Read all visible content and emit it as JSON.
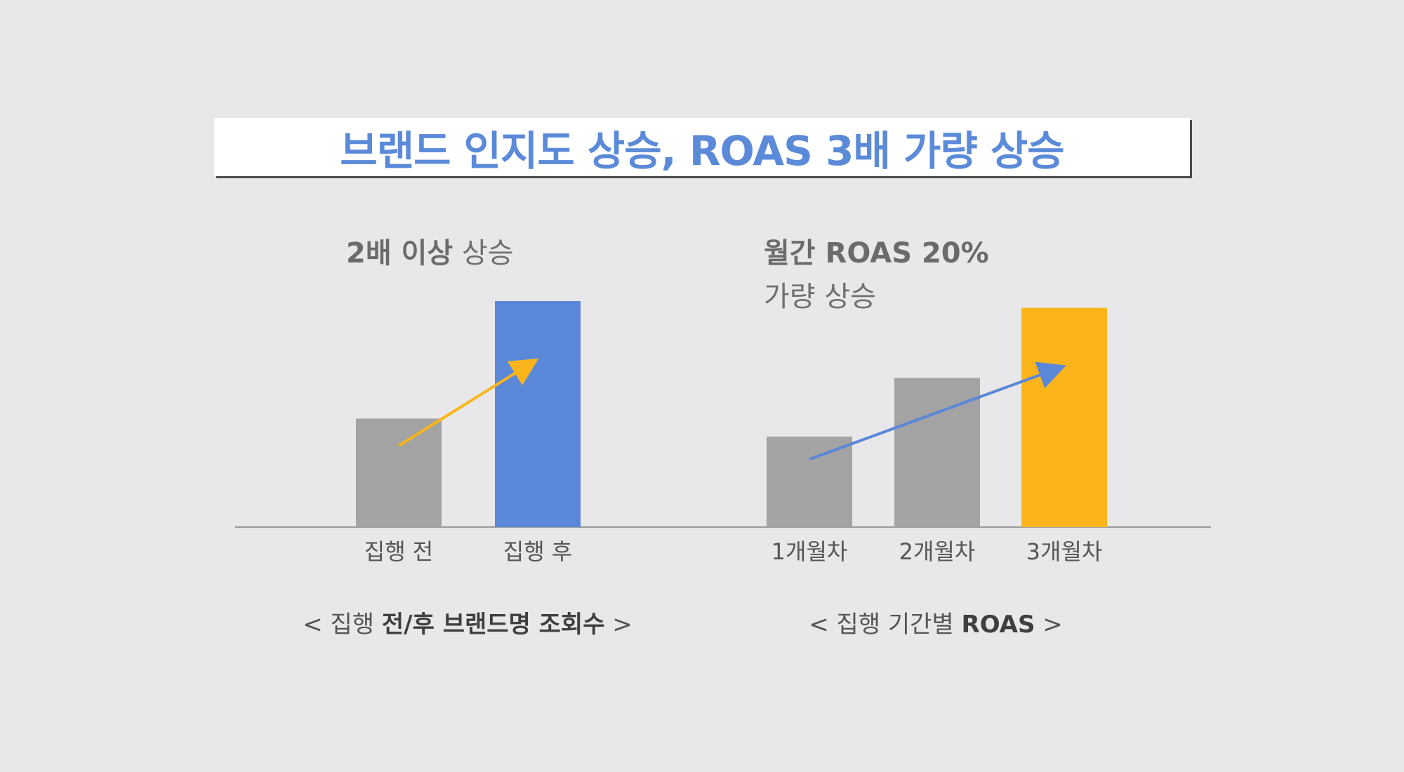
{
  "title": "브랜드 인지도 상승, ROAS 3배 가량 상승",
  "left_panel": {
    "headline_bold": "2배 이상",
    "headline_light": " 상승",
    "caption_prefix": "< 집행 ",
    "caption_bold": "전/후 브랜드명 조회수",
    "caption_suffix": " >"
  },
  "right_panel": {
    "headline_bold": "월간 ROAS 20%",
    "headline_light": "가량 상승",
    "caption_prefix": "< 집행 기간별 ",
    "caption_bold": "ROAS",
    "caption_suffix": " >"
  },
  "colors": {
    "gray_bar": "#a3a3a3",
    "blue": "#5b87d9",
    "yellow": "#fbb51b",
    "axis": "#9a9a9a"
  },
  "chart_data": [
    {
      "type": "bar",
      "categories": [
        "집행 전",
        "집행 후"
      ],
      "values": [
        48,
        100
      ],
      "ylim": [
        0,
        100
      ],
      "bar_colors": [
        "#a3a3a3",
        "#5b87d9"
      ],
      "trend_arrow_color": "#fbb51b"
    },
    {
      "type": "bar",
      "categories": [
        "1개월차",
        "2개월차",
        "3개월차"
      ],
      "values": [
        40,
        66,
        97
      ],
      "ylim": [
        0,
        100
      ],
      "bar_colors": [
        "#a3a3a3",
        "#a3a3a3",
        "#fbb51b"
      ],
      "trend_arrow_color": "#5b87d9"
    }
  ]
}
